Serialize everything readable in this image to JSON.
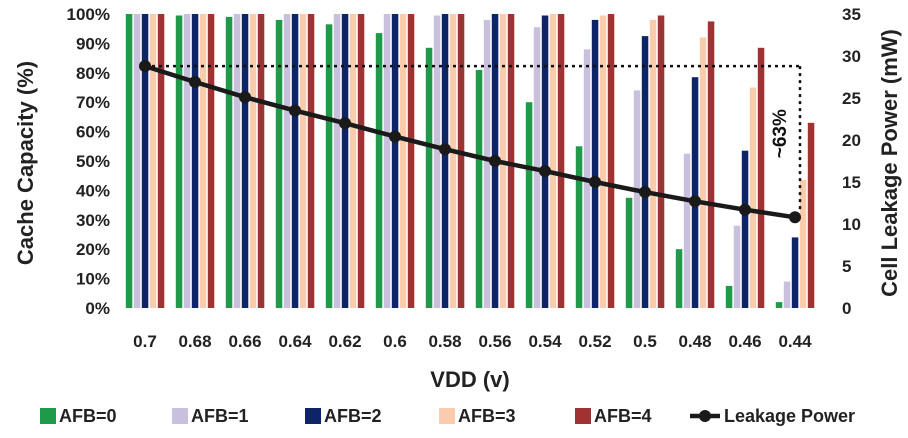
{
  "chart_data": {
    "type": "bar",
    "xlabel": "VDD (v)",
    "ylabel": "Cache Capacity (%)",
    "y2label": "Cell Leakage Power (mW)",
    "categories": [
      "0.7",
      "0.68",
      "0.66",
      "0.64",
      "0.62",
      "0.6",
      "0.58",
      "0.56",
      "0.54",
      "0.52",
      "0.5",
      "0.48",
      "0.46",
      "0.44"
    ],
    "ylim": [
      0,
      100
    ],
    "y_ticks": [
      "0%",
      "10%",
      "20%",
      "30%",
      "40%",
      "50%",
      "60%",
      "70%",
      "80%",
      "90%",
      "100%"
    ],
    "y2lim": [
      0,
      35
    ],
    "y2_ticks": [
      "0",
      "5",
      "10",
      "15",
      "20",
      "25",
      "30",
      "35"
    ],
    "grid": false,
    "legend_position": "bottom",
    "series": [
      {
        "name": "AFB=0",
        "color": "#1f9a4b",
        "values": [
          100,
          99.5,
          99,
          98,
          96.5,
          93.5,
          88.5,
          81,
          70,
          55,
          37.5,
          20,
          7.5,
          2
        ]
      },
      {
        "name": "AFB=1",
        "color": "#c9c0dd",
        "values": [
          100,
          100,
          100,
          100,
          100,
          100,
          99.5,
          98,
          95.5,
          88,
          74,
          52.5,
          28,
          9
        ]
      },
      {
        "name": "AFB=2",
        "color": "#0d2466",
        "values": [
          100,
          100,
          100,
          100,
          100,
          100,
          100,
          100,
          99.5,
          98,
          92.5,
          78.5,
          53.5,
          24
        ]
      },
      {
        "name": "AFB=3",
        "color": "#f8ccac",
        "values": [
          100,
          100,
          100,
          100,
          100,
          100,
          100,
          100,
          100,
          99.5,
          98,
          92,
          75,
          43.5
        ]
      },
      {
        "name": "AFB=4",
        "color": "#9f3232",
        "values": [
          100,
          100,
          100,
          100,
          100,
          100,
          100,
          100,
          100,
          100,
          99.5,
          97.5,
          88.5,
          63
        ]
      }
    ],
    "line_series": {
      "name": "Leakage Power",
      "axis": "right",
      "color": "#1a1a1a",
      "values": [
        28.8,
        26.9,
        25.1,
        23.5,
        22.0,
        20.4,
        18.9,
        17.5,
        16.3,
        15.0,
        13.8,
        12.7,
        11.7,
        10.8
      ]
    },
    "annotations": [
      {
        "text": "~63%",
        "y2": 28.8
      }
    ]
  }
}
